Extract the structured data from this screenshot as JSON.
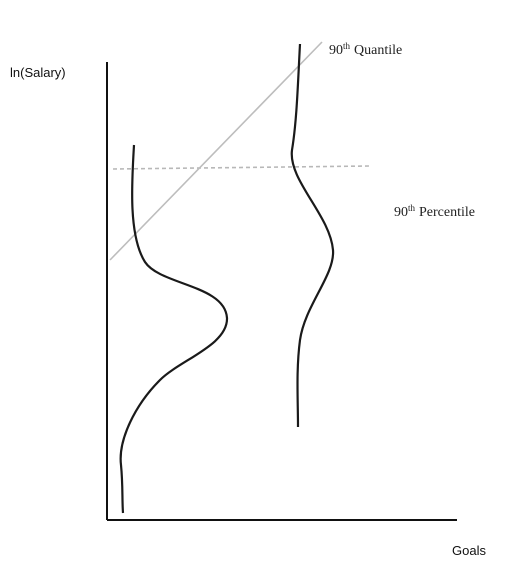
{
  "diagram": {
    "y_axis_label": "ln(Salary)",
    "x_axis_label": "Goals",
    "quantile_line": {
      "label_number": "90",
      "label_superscript": "th",
      "label_text": "Quantile",
      "color": "#bdbdbd"
    },
    "percentile_line": {
      "label_number": "90",
      "label_superscript": "th",
      "label_text": "Percentile",
      "color": "#b8b8b8"
    },
    "curve_color": "#1a1a1a",
    "axis_color": "#111111"
  }
}
